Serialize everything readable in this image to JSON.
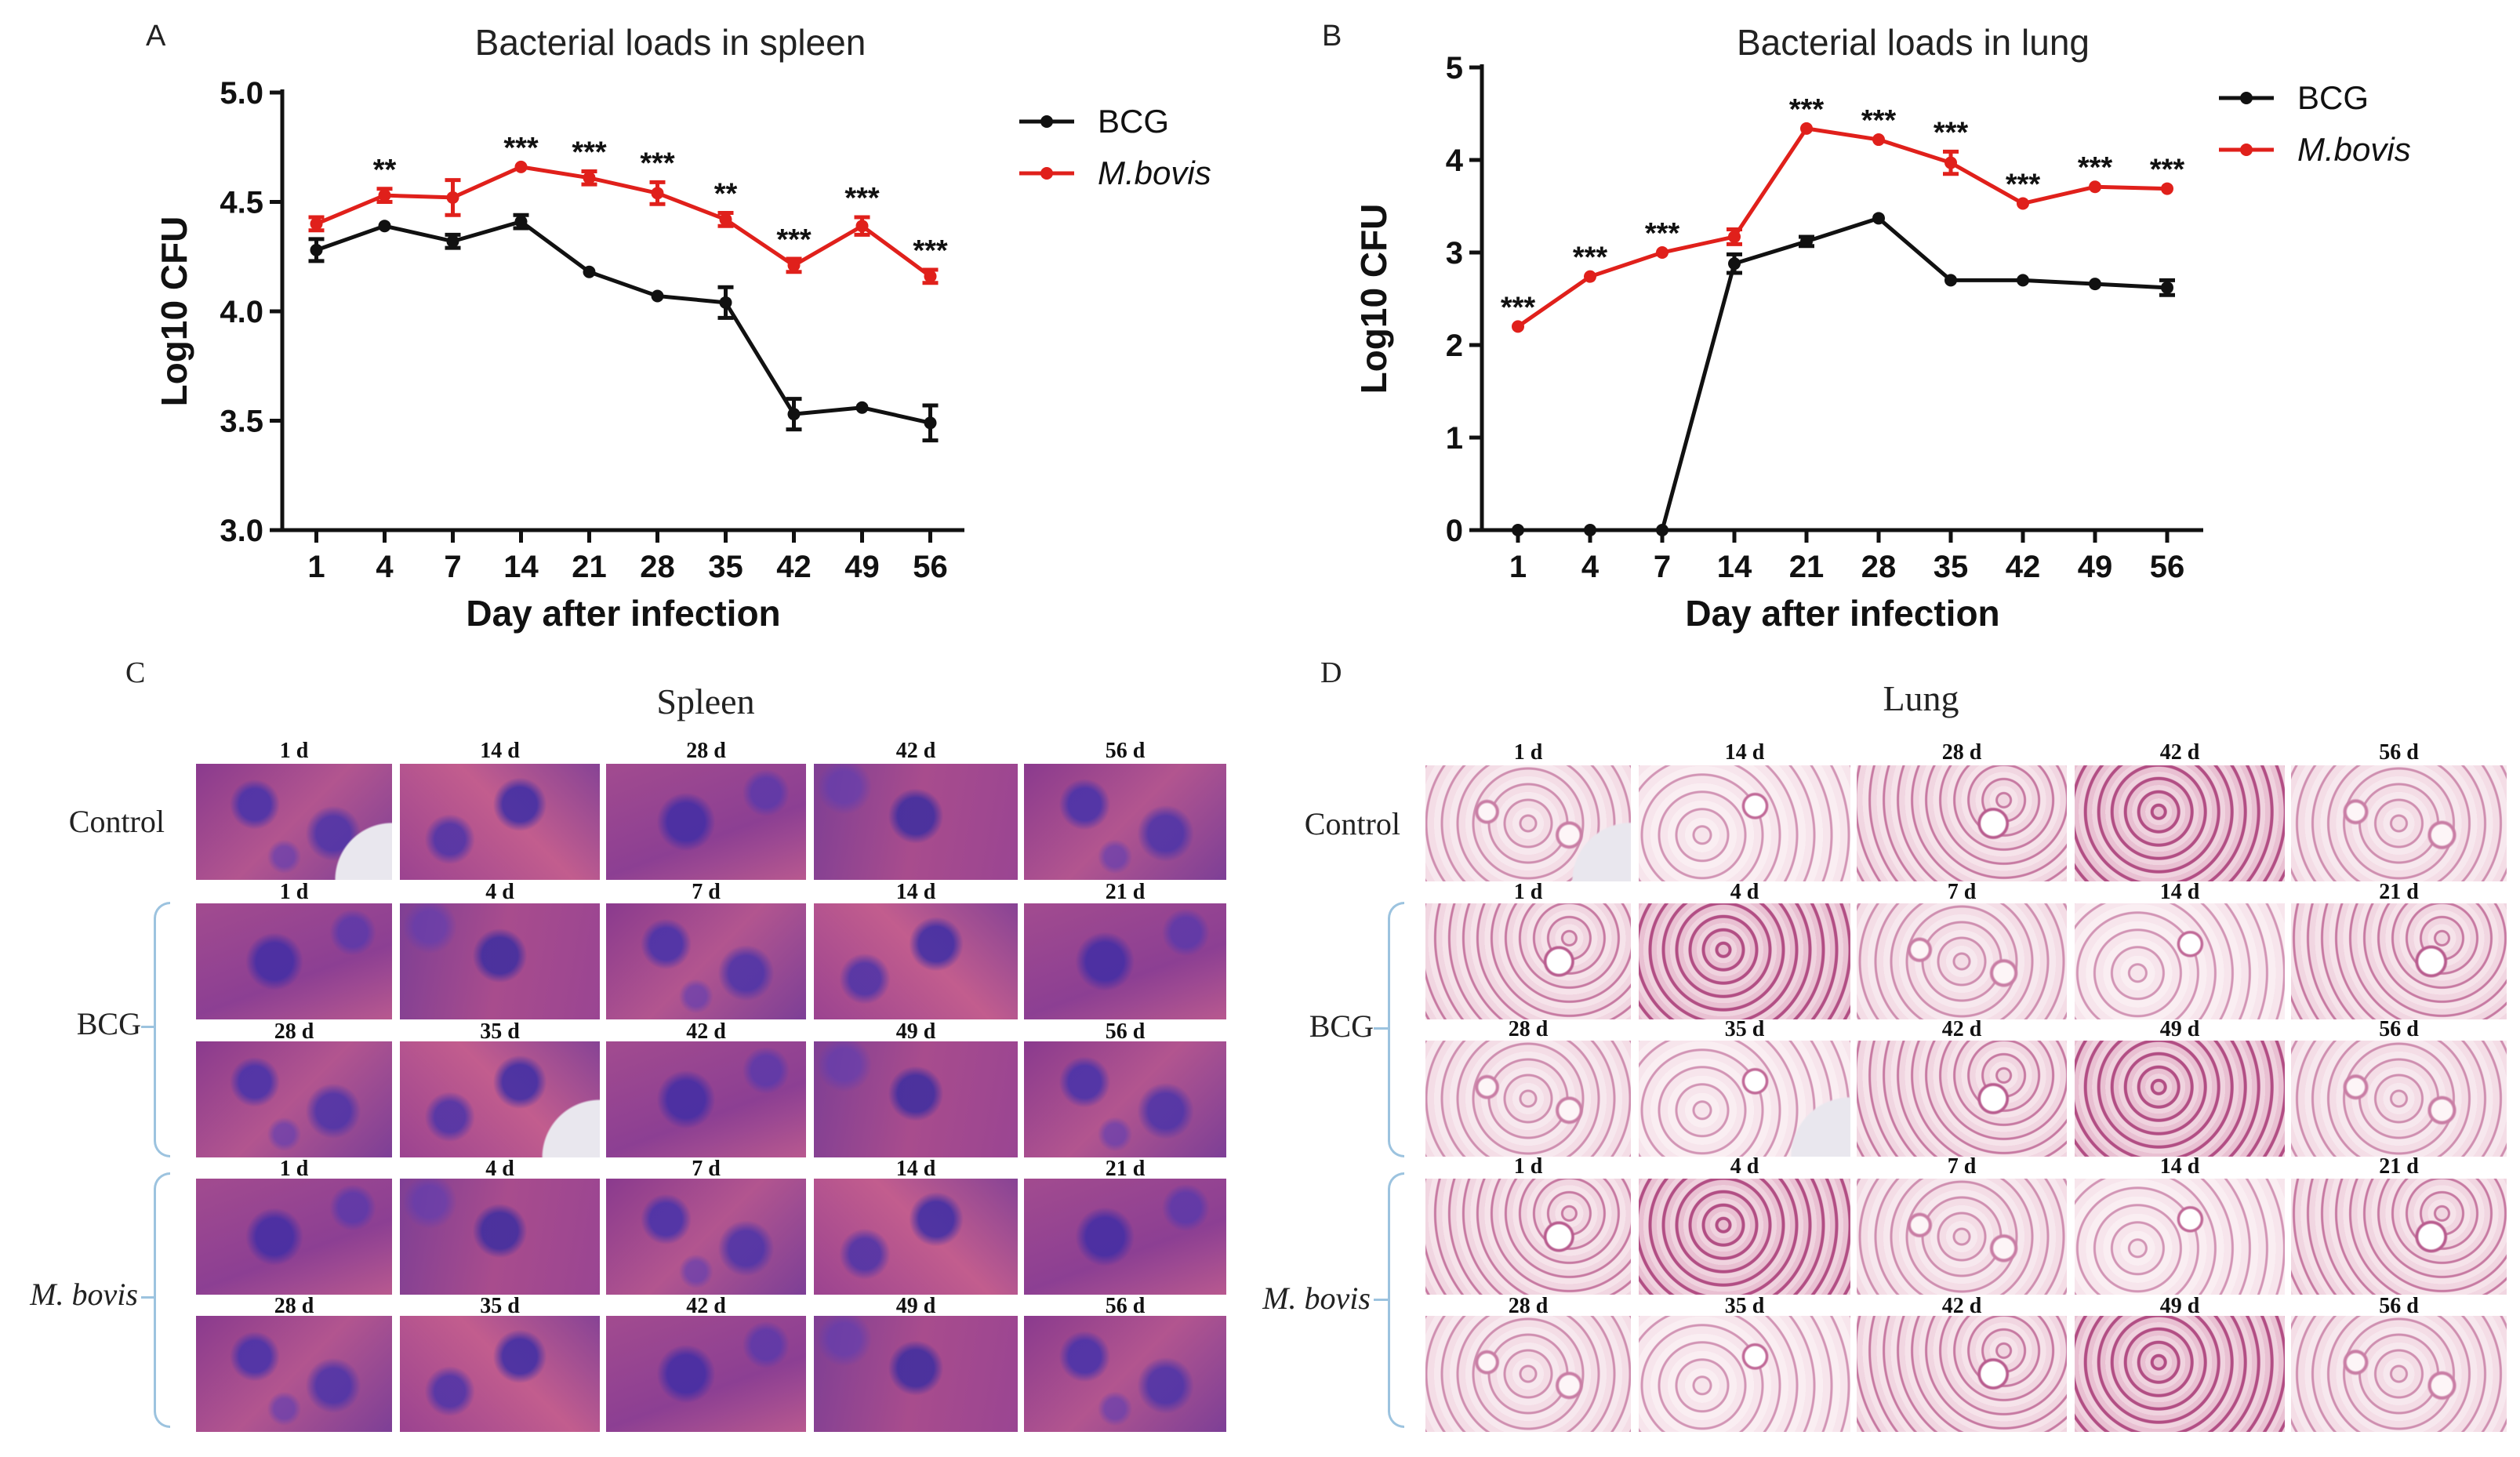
{
  "chart_data": [
    {
      "panel": "A",
      "type": "line",
      "title": "Bacterial loads in spleen",
      "xlabel": "Day after infection",
      "ylabel": "Log10 CFU",
      "categories": [
        "1",
        "4",
        "7",
        "14",
        "21",
        "28",
        "35",
        "42",
        "49",
        "56"
      ],
      "ylim": [
        3.0,
        5.0
      ],
      "yticks": [
        "3.0",
        "3.5",
        "4.0",
        "4.5",
        "5.0"
      ],
      "series": [
        {
          "name": "BCG",
          "color": "#111111",
          "values": [
            4.28,
            4.39,
            4.32,
            4.41,
            4.18,
            4.07,
            4.04,
            3.53,
            3.56,
            3.49
          ],
          "errors": [
            0.05,
            0.0,
            0.03,
            0.03,
            0.0,
            0.0,
            0.07,
            0.07,
            0.0,
            0.08
          ]
        },
        {
          "name": "M.bovis",
          "color": "#e0201b",
          "values": [
            4.4,
            4.53,
            4.52,
            4.66,
            4.61,
            4.54,
            4.42,
            4.21,
            4.39,
            4.16
          ],
          "errors": [
            0.03,
            0.03,
            0.08,
            0.0,
            0.03,
            0.05,
            0.03,
            0.03,
            0.04,
            0.03
          ]
        }
      ],
      "significance": [
        "",
        "**",
        "",
        "***",
        "***",
        "***",
        "**",
        "***",
        "***",
        "***"
      ]
    },
    {
      "panel": "B",
      "type": "line",
      "title": "Bacterial loads in lung",
      "xlabel": "Day after infection",
      "ylabel": "Log10 CFU",
      "categories": [
        "1",
        "4",
        "7",
        "14",
        "21",
        "28",
        "35",
        "42",
        "49",
        "56"
      ],
      "ylim": [
        0,
        5
      ],
      "yticks": [
        "0",
        "1",
        "2",
        "3",
        "4",
        "5"
      ],
      "series": [
        {
          "name": "BCG",
          "color": "#111111",
          "values": [
            0,
            0,
            0,
            2.88,
            3.12,
            3.37,
            2.7,
            2.7,
            2.66,
            2.62
          ],
          "errors": [
            0,
            0,
            0,
            0.1,
            0.05,
            0.0,
            0.0,
            0.0,
            0.0,
            0.08
          ]
        },
        {
          "name": "M.bovis",
          "color": "#e0201b",
          "values": [
            2.2,
            2.74,
            3.0,
            3.17,
            4.34,
            4.22,
            3.97,
            3.53,
            3.71,
            3.69
          ],
          "errors": [
            0.0,
            0.0,
            0.0,
            0.08,
            0.0,
            0.0,
            0.12,
            0.0,
            0.0,
            0.0
          ]
        }
      ],
      "significance": [
        "***",
        "***",
        "***",
        "",
        "***",
        "***",
        "***",
        "***",
        "***",
        "***"
      ]
    }
  ],
  "panel_c": {
    "letter": "C",
    "title": "Spleen",
    "rows": [
      {
        "label": "Control",
        "days": [
          "1 d",
          "14 d",
          "28 d",
          "42 d",
          "56 d"
        ]
      },
      {
        "label": "",
        "days": [
          "1 d",
          "4 d",
          "7 d",
          "14 d",
          "21 d"
        ]
      },
      {
        "label": "",
        "days": [
          "28 d",
          "35 d",
          "42 d",
          "49 d",
          "56 d"
        ]
      },
      {
        "label": "",
        "days": [
          "1 d",
          "4 d",
          "7 d",
          "14 d",
          "21 d"
        ]
      },
      {
        "label": "",
        "days": [
          "28 d",
          "35 d",
          "42 d",
          "49 d",
          "56 d"
        ]
      }
    ],
    "group_labels": [
      "BCG",
      "M. bovis"
    ]
  },
  "panel_d": {
    "letter": "D",
    "title": "Lung",
    "rows": [
      {
        "label": "Control",
        "days": [
          "1 d",
          "14 d",
          "28 d",
          "42 d",
          "56 d"
        ]
      },
      {
        "label": "",
        "days": [
          "1 d",
          "4 d",
          "7 d",
          "14 d",
          "21 d"
        ]
      },
      {
        "label": "",
        "days": [
          "28 d",
          "35 d",
          "42 d",
          "49 d",
          "56 d"
        ]
      },
      {
        "label": "",
        "days": [
          "1 d",
          "4 d",
          "7 d",
          "14 d",
          "21 d"
        ]
      },
      {
        "label": "",
        "days": [
          "28 d",
          "35 d",
          "42 d",
          "49 d",
          "56 d"
        ]
      }
    ],
    "group_labels": [
      "BCG",
      "M. bovis"
    ]
  }
}
